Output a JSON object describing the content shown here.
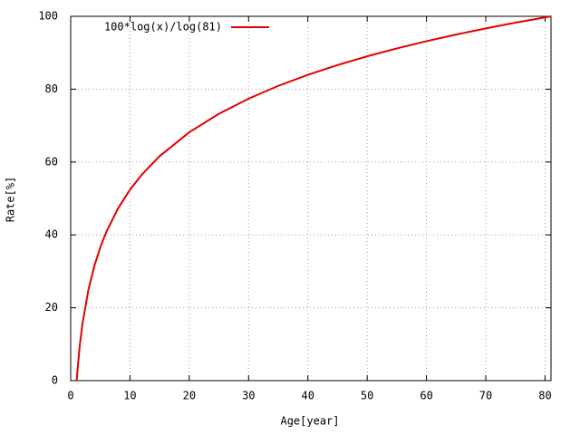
{
  "chart_data": {
    "type": "line",
    "x_label": "Age[year]",
    "y_label": "Rate[%]",
    "x": [
      1,
      1.5,
      2,
      3,
      4,
      5,
      6,
      8,
      10,
      12,
      15,
      20,
      25,
      30,
      35,
      40,
      45,
      50,
      55,
      60,
      65,
      70,
      75,
      81
    ],
    "series": [
      {
        "name": "100*log(x)/log(81)",
        "color": "#e00000",
        "values": [
          0,
          9.23,
          15.77,
          25.0,
          31.55,
          36.62,
          40.77,
          47.32,
          52.4,
          56.55,
          61.62,
          68.17,
          73.25,
          77.4,
          80.91,
          83.94,
          86.62,
          89.02,
          91.19,
          93.17,
          94.99,
          96.68,
          98.25,
          100
        ]
      }
    ],
    "xlim": [
      0,
      81
    ],
    "xticks": [
      0,
      10,
      20,
      30,
      40,
      50,
      60,
      70,
      80
    ],
    "ylim": [
      0,
      100
    ],
    "yticks": [
      0,
      20,
      40,
      60,
      80,
      100
    ],
    "grid": true,
    "legend": "top-left"
  }
}
